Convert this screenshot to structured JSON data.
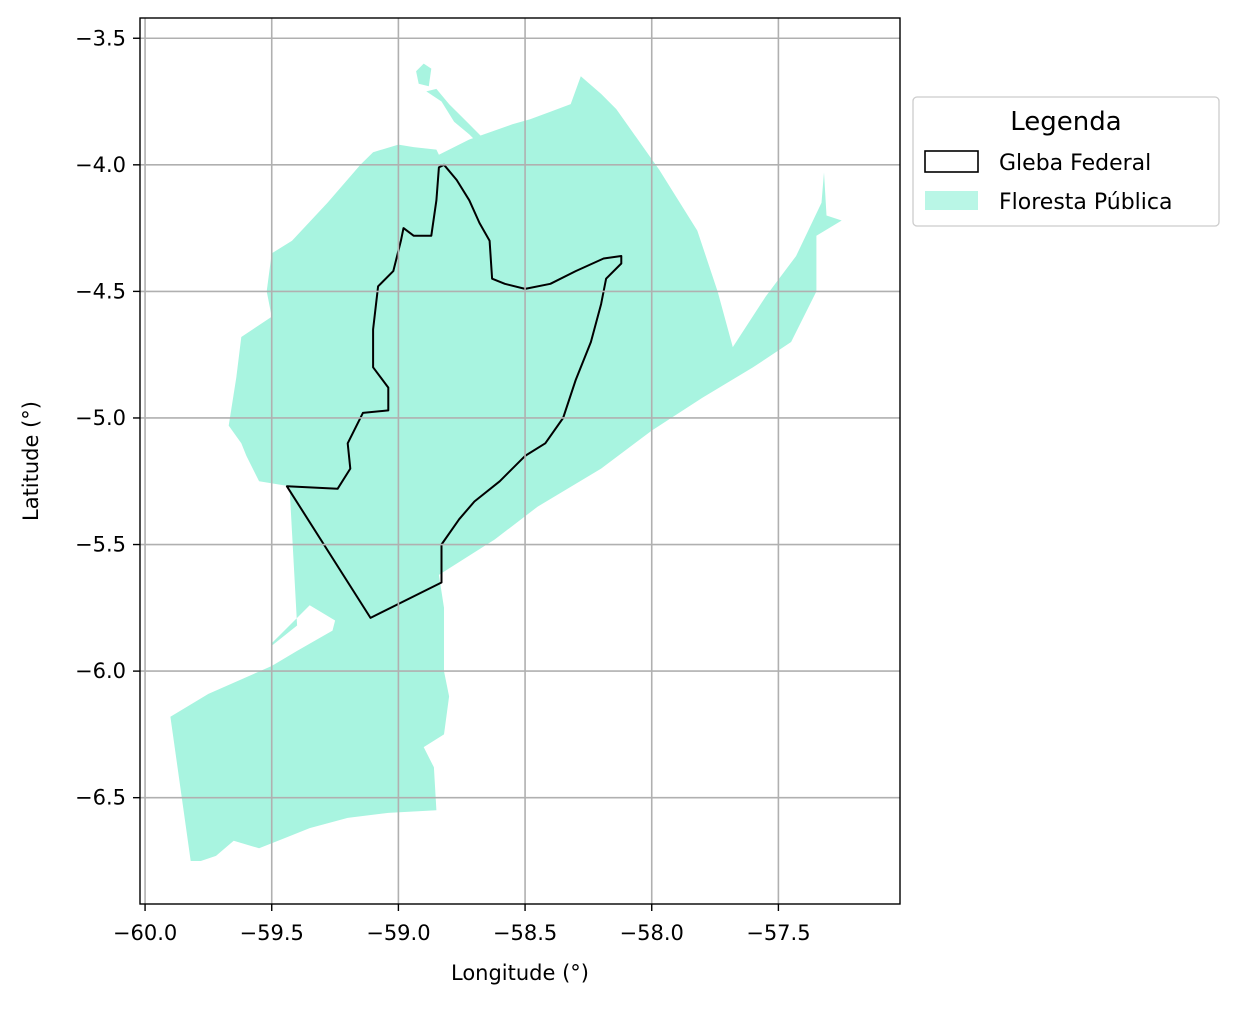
{
  "chart_data": {
    "type": "map",
    "title": "",
    "xlabel": "Longitude (°)",
    "ylabel": "Latitude (°)",
    "xlim": [
      -60.02,
      -57.02
    ],
    "ylim": [
      -6.92,
      -3.42
    ],
    "grid": true,
    "xticks": [
      -60.0,
      -59.5,
      -59.0,
      -58.5,
      -58.0,
      -57.5
    ],
    "yticks": [
      -3.5,
      -4.0,
      -4.5,
      -5.0,
      -5.5,
      -6.0,
      -6.5
    ],
    "xtick_labels": [
      "−60.0",
      "−59.5",
      "−59.0",
      "−58.5",
      "−58.0",
      "−57.5"
    ],
    "ytick_labels": [
      "−3.5",
      "−4.0",
      "−4.5",
      "−5.0",
      "−5.5",
      "−6.0",
      "−6.5"
    ],
    "legend": {
      "title": "Legenda",
      "placement": "outside-upper-right",
      "entries": [
        {
          "label": "Gleba Federal",
          "style": "outline",
          "color": "#000000"
        },
        {
          "label": "Floresta Pública",
          "style": "fill",
          "color": "#a8f4e0"
        }
      ]
    },
    "series": [
      {
        "name": "Floresta Pública",
        "color": "#a8f4e0",
        "polygons": [
          [
            [
              -58.84,
              -3.96
            ],
            [
              -58.72,
              -3.9
            ],
            [
              -58.55,
              -3.84
            ],
            [
              -58.48,
              -3.82
            ],
            [
              -58.4,
              -3.79
            ],
            [
              -58.32,
              -3.76
            ],
            [
              -58.28,
              -3.65
            ],
            [
              -58.2,
              -3.72
            ],
            [
              -58.14,
              -3.78
            ],
            [
              -57.97,
              -4.02
            ],
            [
              -57.82,
              -4.26
            ],
            [
              -57.74,
              -4.5
            ],
            [
              -57.68,
              -4.72
            ],
            [
              -57.55,
              -4.52
            ],
            [
              -57.43,
              -4.36
            ],
            [
              -57.33,
              -4.15
            ],
            [
              -57.32,
              -4.03
            ],
            [
              -57.31,
              -4.2
            ],
            [
              -57.25,
              -4.22
            ],
            [
              -57.35,
              -4.28
            ],
            [
              -57.35,
              -4.5
            ],
            [
              -57.45,
              -4.7
            ],
            [
              -57.6,
              -4.8
            ],
            [
              -57.8,
              -4.92
            ],
            [
              -58.0,
              -5.05
            ],
            [
              -58.2,
              -5.2
            ],
            [
              -58.45,
              -5.35
            ],
            [
              -58.62,
              -5.48
            ],
            [
              -58.84,
              -5.62
            ],
            [
              -58.82,
              -5.75
            ],
            [
              -58.82,
              -6.0
            ],
            [
              -58.8,
              -6.1
            ],
            [
              -58.82,
              -6.25
            ],
            [
              -58.9,
              -6.3
            ],
            [
              -58.86,
              -6.38
            ],
            [
              -58.85,
              -6.55
            ],
            [
              -59.04,
              -6.56
            ],
            [
              -59.2,
              -6.58
            ],
            [
              -59.35,
              -6.62
            ],
            [
              -59.45,
              -6.66
            ],
            [
              -59.55,
              -6.7
            ],
            [
              -59.65,
              -6.67
            ],
            [
              -59.72,
              -6.73
            ],
            [
              -59.78,
              -6.75
            ],
            [
              -59.82,
              -6.75
            ],
            [
              -59.9,
              -6.18
            ],
            [
              -59.75,
              -6.09
            ],
            [
              -59.5,
              -5.98
            ],
            [
              -59.4,
              -5.92
            ],
            [
              -59.26,
              -5.84
            ],
            [
              -59.25,
              -5.8
            ],
            [
              -59.35,
              -5.74
            ],
            [
              -59.5,
              -5.89
            ],
            [
              -59.5,
              -5.95
            ],
            [
              -59.5,
              -5.9
            ],
            [
              -59.4,
              -5.82
            ],
            [
              -59.43,
              -5.27
            ],
            [
              -59.55,
              -5.25
            ],
            [
              -59.6,
              -5.15
            ],
            [
              -59.62,
              -5.1
            ],
            [
              -59.67,
              -5.03
            ],
            [
              -59.64,
              -4.84
            ],
            [
              -59.62,
              -4.68
            ],
            [
              -59.5,
              -4.6
            ],
            [
              -59.52,
              -4.5
            ],
            [
              -59.5,
              -4.35
            ],
            [
              -59.42,
              -4.3
            ],
            [
              -59.28,
              -4.15
            ],
            [
              -59.15,
              -4.0
            ],
            [
              -59.1,
              -3.95
            ],
            [
              -59.0,
              -3.92
            ],
            [
              -58.94,
              -3.93
            ],
            [
              -58.85,
              -3.94
            ]
          ],
          [
            [
              -58.89,
              -3.71
            ],
            [
              -58.83,
              -3.75
            ],
            [
              -58.78,
              -3.83
            ],
            [
              -58.72,
              -3.88
            ],
            [
              -58.67,
              -3.93
            ],
            [
              -58.64,
              -3.92
            ],
            [
              -58.72,
              -3.84
            ],
            [
              -58.8,
              -3.76
            ],
            [
              -58.85,
              -3.7
            ]
          ],
          [
            [
              -58.92,
              -3.68
            ],
            [
              -58.88,
              -3.69
            ],
            [
              -58.87,
              -3.62
            ],
            [
              -58.9,
              -3.6
            ],
            [
              -58.93,
              -3.63
            ]
          ]
        ]
      },
      {
        "name": "Gleba Federal",
        "color": "#000000",
        "polygons": [
          [
            [
              -58.82,
              -4.0
            ],
            [
              -58.77,
              -4.06
            ],
            [
              -58.72,
              -4.14
            ],
            [
              -58.68,
              -4.23
            ],
            [
              -58.64,
              -4.3
            ],
            [
              -58.63,
              -4.45
            ],
            [
              -58.58,
              -4.47
            ],
            [
              -58.5,
              -4.49
            ],
            [
              -58.4,
              -4.47
            ],
            [
              -58.3,
              -4.42
            ],
            [
              -58.19,
              -4.37
            ],
            [
              -58.12,
              -4.36
            ],
            [
              -58.12,
              -4.39
            ],
            [
              -58.18,
              -4.45
            ],
            [
              -58.2,
              -4.55
            ],
            [
              -58.24,
              -4.7
            ],
            [
              -58.3,
              -4.85
            ],
            [
              -58.35,
              -5.0
            ],
            [
              -58.42,
              -5.1
            ],
            [
              -58.5,
              -5.15
            ],
            [
              -58.6,
              -5.25
            ],
            [
              -58.7,
              -5.33
            ],
            [
              -58.76,
              -5.4
            ],
            [
              -58.83,
              -5.5
            ],
            [
              -58.83,
              -5.65
            ],
            [
              -59.11,
              -5.79
            ],
            [
              -59.44,
              -5.27
            ],
            [
              -59.24,
              -5.28
            ],
            [
              -59.19,
              -5.2
            ],
            [
              -59.2,
              -5.1
            ],
            [
              -59.14,
              -4.98
            ],
            [
              -59.04,
              -4.97
            ],
            [
              -59.04,
              -4.88
            ],
            [
              -59.1,
              -4.8
            ],
            [
              -59.1,
              -4.65
            ],
            [
              -59.08,
              -4.48
            ],
            [
              -59.02,
              -4.42
            ],
            [
              -58.99,
              -4.3
            ],
            [
              -58.98,
              -4.25
            ],
            [
              -58.94,
              -4.28
            ],
            [
              -58.87,
              -4.28
            ],
            [
              -58.85,
              -4.14
            ],
            [
              -58.84,
              -4.01
            ]
          ]
        ]
      }
    ]
  }
}
